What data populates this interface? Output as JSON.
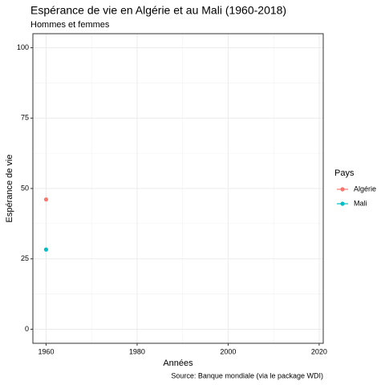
{
  "chart_data": {
    "type": "line",
    "title": "Espérance de vie en Algérie et au Mali (1960-2018)",
    "subtitle": "Hommes et femmes",
    "x_label": "Années",
    "y_label": "Espérance de vie",
    "caption": "Source: Banque mondiale (via le package WDI)",
    "legend_title": "Pays",
    "legend_position": "right",
    "grid": true,
    "x": [
      1960
    ],
    "series": [
      {
        "name": "Algérie",
        "color": "#F8766D",
        "values": [
          46.1
        ]
      },
      {
        "name": "Mali",
        "color": "#00BFC4",
        "values": [
          28.3
        ]
      }
    ],
    "xlim": [
      1957.1,
      2020.9
    ],
    "xticks": [
      1960,
      1980,
      2000,
      2020
    ],
    "ylim": [
      -5,
      105
    ],
    "yticks": [
      0,
      25,
      50,
      75,
      100
    ]
  }
}
